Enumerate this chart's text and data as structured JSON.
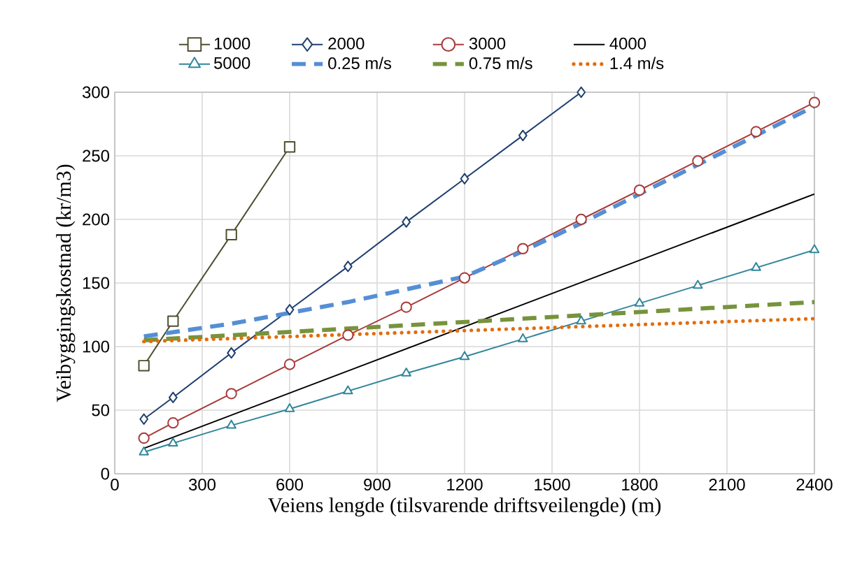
{
  "chart_data": {
    "type": "line",
    "xlabel": "Veiens lengde (tilsvarende driftsveilengde) (m)",
    "ylabel": "Veibyggingskostnad (kr/m3)",
    "xlim": [
      0,
      2400
    ],
    "ylim": [
      0,
      300
    ],
    "xticks": [
      0,
      300,
      600,
      900,
      1200,
      1500,
      1800,
      2100,
      2400
    ],
    "yticks": [
      0,
      50,
      100,
      150,
      200,
      250,
      300
    ],
    "grid": true,
    "legend": "top",
    "series": [
      {
        "name": "1000",
        "color": "#4f4f2f",
        "marker": "square",
        "line_style": "solid",
        "x": [
          100,
          200,
          400,
          600
        ],
        "values": [
          85,
          120,
          188,
          257
        ]
      },
      {
        "name": "2000",
        "color": "#1f3f6f",
        "marker": "diamond",
        "line_style": "solid",
        "x": [
          100,
          200,
          400,
          600,
          800,
          1000,
          1200,
          1400,
          1600
        ],
        "values": [
          43,
          60,
          95,
          129,
          163,
          198,
          232,
          266,
          300
        ]
      },
      {
        "name": "3000",
        "color": "#a93a3a",
        "marker": "circle",
        "line_style": "solid",
        "x": [
          100,
          200,
          400,
          600,
          800,
          1000,
          1200,
          1400,
          1600,
          1800,
          2000,
          2200,
          2400
        ],
        "values": [
          28,
          40,
          63,
          86,
          109,
          131,
          154,
          177,
          200,
          223,
          246,
          269,
          292
        ]
      },
      {
        "name": "4000",
        "color": "#000000",
        "marker": "none",
        "line_style": "solid",
        "x": [
          100,
          2400
        ],
        "values": [
          20,
          220
        ]
      },
      {
        "name": "5000",
        "color": "#31869b",
        "marker": "triangle",
        "line_style": "solid",
        "x": [
          100,
          200,
          400,
          600,
          800,
          1000,
          1200,
          1400,
          1600,
          1800,
          2000,
          2200,
          2400
        ],
        "values": [
          17,
          24,
          38,
          51,
          65,
          79,
          92,
          106,
          120,
          134,
          148,
          162,
          176
        ]
      },
      {
        "name": "0.25 m/s",
        "color": "#558ed5",
        "marker": "none",
        "line_style": "dashed",
        "x": [
          100,
          400,
          800,
          1200,
          1400,
          1600,
          2000,
          2400
        ],
        "values": [
          108,
          118,
          135,
          155,
          175,
          197,
          243,
          289
        ]
      },
      {
        "name": "0.75 m/s",
        "color": "#77933c",
        "marker": "none",
        "line_style": "dashed",
        "x": [
          100,
          2400
        ],
        "values": [
          105,
          135
        ]
      },
      {
        "name": "1.4 m/s",
        "color": "#e46c0a",
        "marker": "none",
        "line_style": "dotted",
        "x": [
          100,
          2400
        ],
        "values": [
          104,
          122
        ]
      }
    ]
  }
}
